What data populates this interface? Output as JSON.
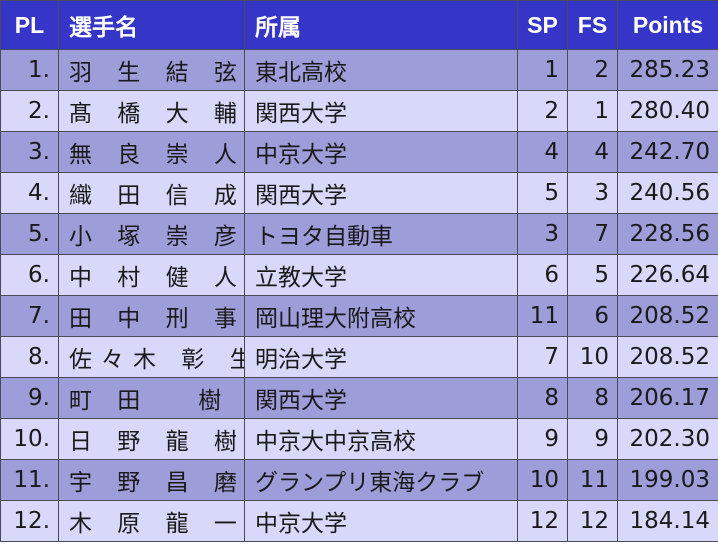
{
  "header": {
    "pl": "PL",
    "name": "選手名",
    "team": "所属",
    "sp": "SP",
    "fs": "FS",
    "points": "Points"
  },
  "rows": [
    {
      "pl": "1.",
      "name": "羽 生 結 弦",
      "team": "東北高校",
      "sp": "1",
      "fs": "2",
      "points": "285.23"
    },
    {
      "pl": "2.",
      "name": "髙 橋 大 輔",
      "team": "関西大学",
      "sp": "2",
      "fs": "1",
      "points": "280.40"
    },
    {
      "pl": "3.",
      "name": "無 良 崇 人",
      "team": "中京大学",
      "sp": "4",
      "fs": "4",
      "points": "242.70"
    },
    {
      "pl": "4.",
      "name": "織 田 信 成",
      "team": "関西大学",
      "sp": "5",
      "fs": "3",
      "points": "240.56"
    },
    {
      "pl": "5.",
      "name": "小 塚 崇 彦",
      "team": "トヨタ自動車",
      "sp": "3",
      "fs": "7",
      "points": "228.56"
    },
    {
      "pl": "6.",
      "name": "中 村 健 人",
      "team": "立教大学",
      "sp": "6",
      "fs": "5",
      "points": "226.64"
    },
    {
      "pl": "7.",
      "name": "田 中 刑 事",
      "team": "岡山理大附高校",
      "sp": "11",
      "fs": "6",
      "points": "208.52"
    },
    {
      "pl": "8.",
      "name": "佐々木 彰 生",
      "team": "明治大学",
      "sp": "7",
      "fs": "10",
      "points": "208.52"
    },
    {
      "pl": "9.",
      "name": "町 田   樹",
      "team": "関西大学",
      "sp": "8",
      "fs": "8",
      "points": "206.17"
    },
    {
      "pl": "10.",
      "name": "日 野 龍 樹",
      "team": "中京大中京高校",
      "sp": "9",
      "fs": "9",
      "points": "202.30"
    },
    {
      "pl": "11.",
      "name": "宇 野 昌 磨",
      "team": "グランプリ東海クラブ",
      "sp": "10",
      "fs": "11",
      "points": "199.03"
    },
    {
      "pl": "12.",
      "name": "木 原 龍 一",
      "team": "中京大学",
      "sp": "12",
      "fs": "12",
      "points": "184.14"
    }
  ],
  "colors": {
    "header_bg": "#3535c8",
    "row_dark": "#9d9dd9",
    "row_light": "#d8d8fb"
  }
}
